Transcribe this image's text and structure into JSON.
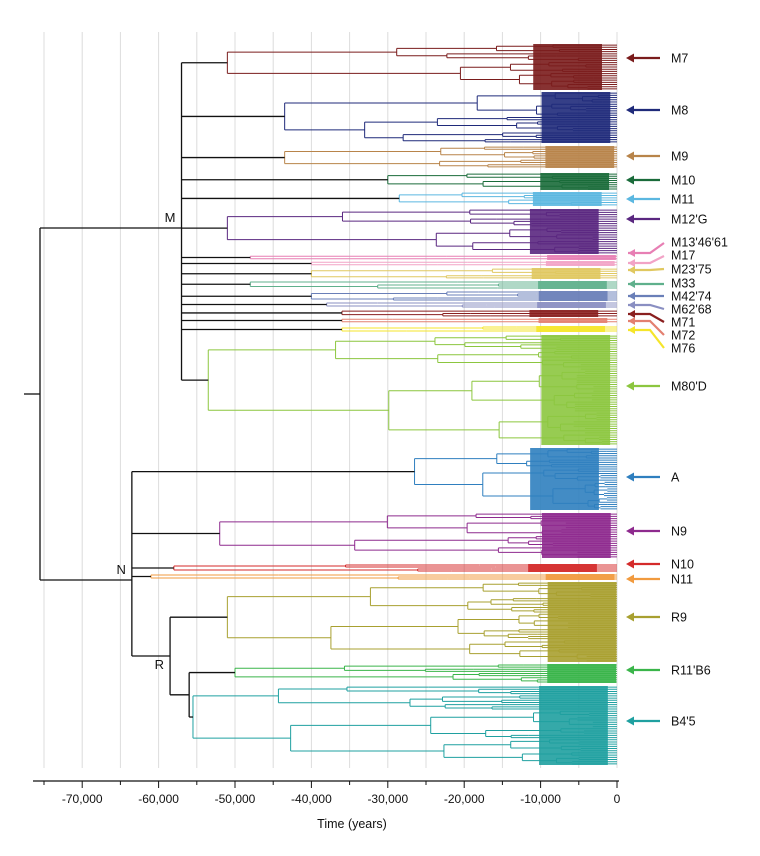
{
  "chart_data": {
    "type": "phylogenetic-tree",
    "xlabel": "Time (years)",
    "xlim": [
      -77000,
      0
    ],
    "xticks": [
      -70000,
      -60000,
      -50000,
      -40000,
      -30000,
      -20000,
      -10000,
      0
    ],
    "xtick_labels": [
      "-70,000",
      "-60,000",
      "-50,000",
      "-40,000",
      "-30,000",
      "-20,000",
      "-10,000",
      "0"
    ],
    "grid": true,
    "node_labels": [
      {
        "label": "M",
        "time": -57000
      },
      {
        "label": "N",
        "time": -63500
      },
      {
        "label": "R",
        "time": -58500
      }
    ],
    "clades": [
      {
        "name": "M7",
        "color": "#7a1c1c",
        "root_time": -51000,
        "depth": 3
      },
      {
        "name": "M8",
        "color": "#1f2a7a",
        "root_time": -43500,
        "depth": 3
      },
      {
        "name": "M9",
        "color": "#b8844a",
        "root_time": -43500,
        "depth": 2
      },
      {
        "name": "M10",
        "color": "#1a6b3a",
        "root_time": -30000,
        "depth": 1
      },
      {
        "name": "M11",
        "color": "#5bb7e0",
        "root_time": -28500,
        "depth": 1
      },
      {
        "name": "M12'G",
        "color": "#5a2780",
        "root_time": -51000,
        "depth": 2
      },
      {
        "name": "M13'46'61",
        "color": "#e77fb4",
        "root_time": -48000,
        "depth": 1
      },
      {
        "name": "M17",
        "color": "#f2a3c6",
        "root_time": -40000,
        "depth": 1
      },
      {
        "name": "M23'75",
        "color": "#e0c860",
        "root_time": -40000,
        "depth": 1
      },
      {
        "name": "M33",
        "color": "#5fb08c",
        "root_time": -48000,
        "depth": 1
      },
      {
        "name": "M42'74",
        "color": "#6a7fb8",
        "root_time": -40000,
        "depth": 1
      },
      {
        "name": "M62'68",
        "color": "#8a8fc2",
        "root_time": -38000,
        "depth": 1
      },
      {
        "name": "M71",
        "color": "#8a1f1f",
        "root_time": -36000,
        "depth": 1
      },
      {
        "name": "M72",
        "color": "#e38070",
        "root_time": -36000,
        "depth": 1
      },
      {
        "name": "M76",
        "color": "#f5e52a",
        "root_time": -36000,
        "depth": 1
      },
      {
        "name": "M80'D",
        "color": "#8cc63f",
        "root_time": -53500,
        "depth": 3
      },
      {
        "name": "A",
        "color": "#2f7fbf",
        "root_time": -26500,
        "depth": 3
      },
      {
        "name": "N9",
        "color": "#8e2a8e",
        "root_time": -52000,
        "depth": 2
      },
      {
        "name": "N10",
        "color": "#d42a2a",
        "root_time": -58000,
        "depth": 1
      },
      {
        "name": "N11",
        "color": "#f19a3e",
        "root_time": -61000,
        "depth": 1
      },
      {
        "name": "R9",
        "color": "#a8a030",
        "root_time": -51000,
        "depth": 3
      },
      {
        "name": "R11'B6",
        "color": "#3ab54a",
        "root_time": -50000,
        "depth": 2
      },
      {
        "name": "B4'5",
        "color": "#1fa0a0",
        "root_time": -55500,
        "depth": 3
      }
    ]
  }
}
